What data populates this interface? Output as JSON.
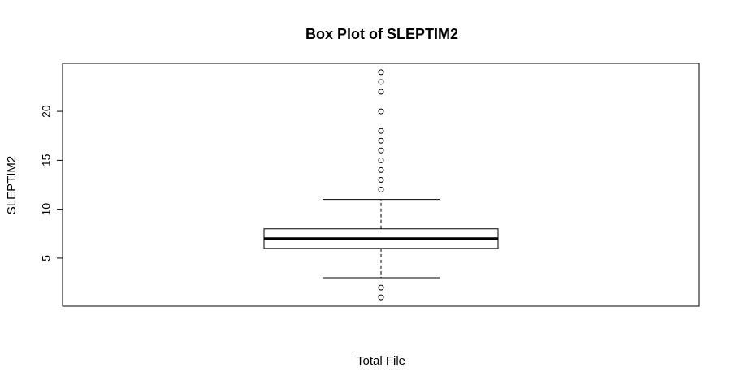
{
  "chart_data": {
    "type": "box",
    "title": "Box Plot of SLEPTIM2",
    "xlabel": "Total File",
    "ylabel": "SLEPTIM2",
    "ylim": [
      0.1,
      24.9
    ],
    "yticks": [
      5,
      10,
      15,
      20
    ],
    "grid": false,
    "legend": "none",
    "box": {
      "whisker_low": 3,
      "q1": 6,
      "median": 7,
      "q3": 8,
      "whisker_high": 11
    },
    "outliers": [
      1,
      2,
      12,
      13,
      14,
      15,
      16,
      17,
      18,
      20,
      22,
      23,
      24
    ]
  }
}
